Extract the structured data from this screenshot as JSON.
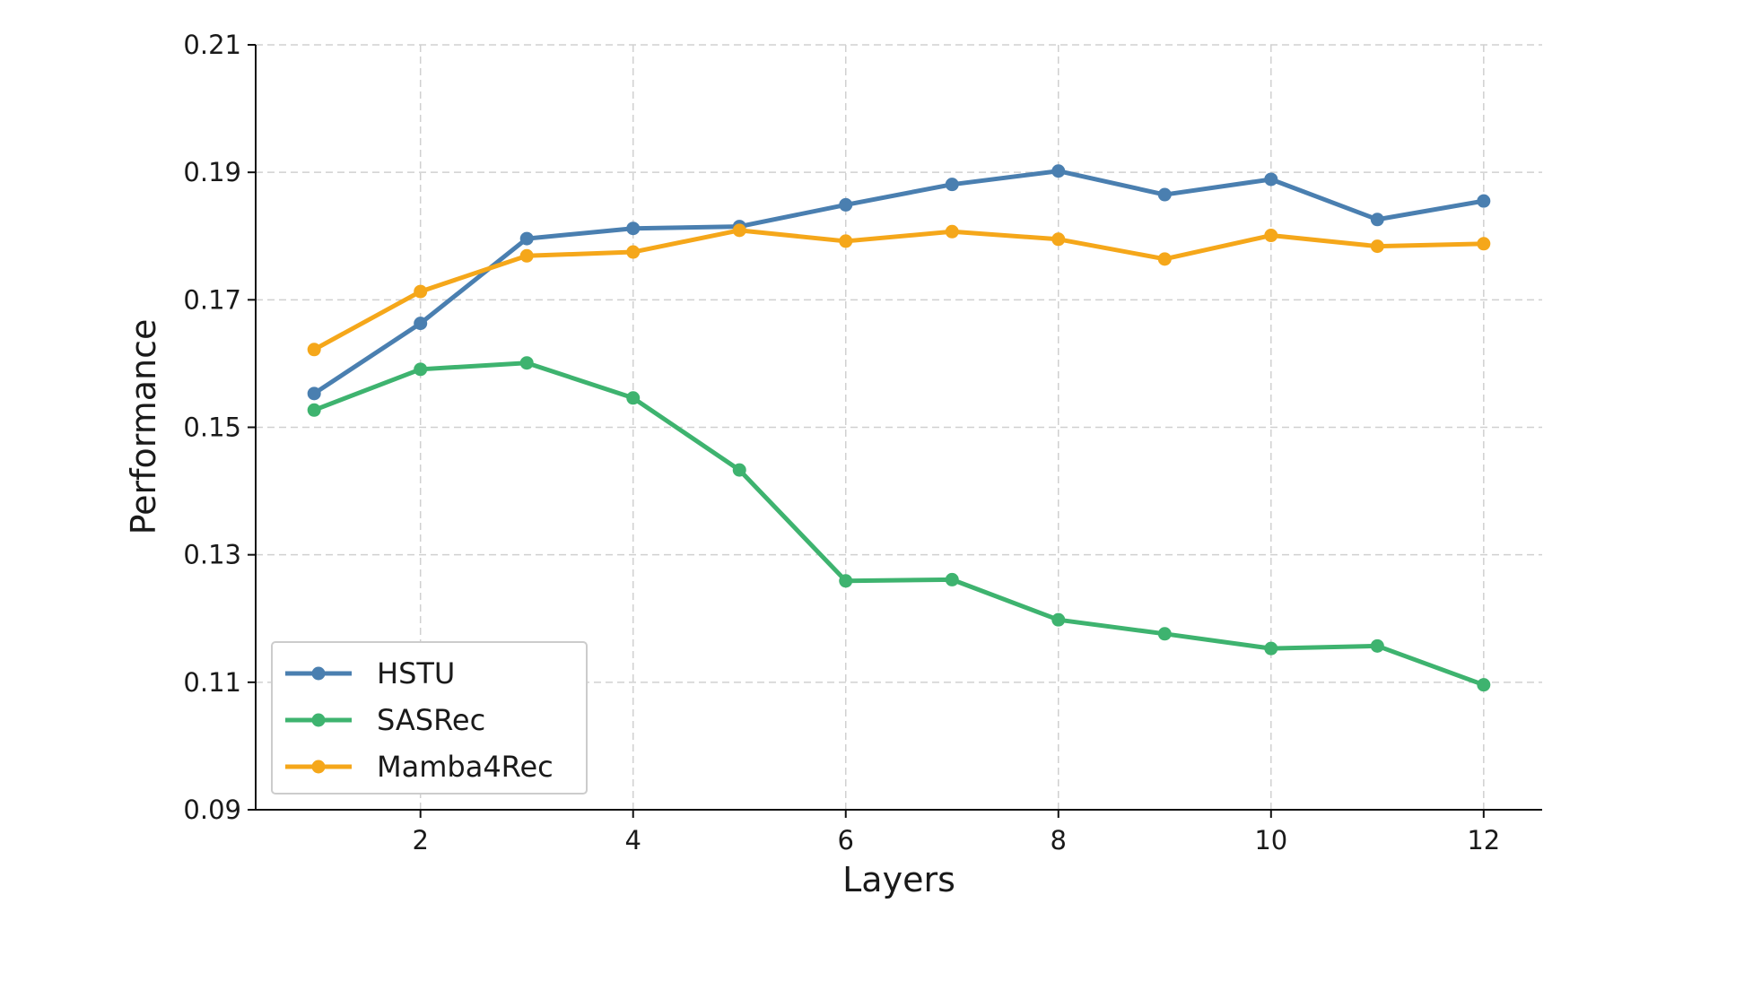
{
  "chart_data": {
    "type": "line",
    "title": "",
    "xlabel": "Layers",
    "ylabel": "Performance",
    "xlim": [
      0.45,
      12.55
    ],
    "ylim": [
      0.09,
      0.21
    ],
    "xticks": [
      2,
      4,
      6,
      8,
      10,
      12
    ],
    "xtick_labels": [
      "2",
      "4",
      "6",
      "8",
      "10",
      "12"
    ],
    "yticks": [
      0.09,
      0.11,
      0.13,
      0.15,
      0.17,
      0.19,
      0.21
    ],
    "ytick_labels": [
      "0.09",
      "0.11",
      "0.13",
      "0.15",
      "0.17",
      "0.19",
      "0.21"
    ],
    "grid": true,
    "legend_position": "lower-left",
    "x": [
      1,
      2,
      3,
      4,
      5,
      6,
      7,
      8,
      9,
      10,
      11,
      12
    ],
    "series": [
      {
        "name": "HSTU",
        "color": "#4a7fb0",
        "values": [
          0.1553,
          0.1663,
          0.1796,
          0.1812,
          0.1815,
          0.1849,
          0.1881,
          0.1902,
          0.1865,
          0.1889,
          0.1826,
          0.1855
        ]
      },
      {
        "name": "SASRec",
        "color": "#3eb36f",
        "values": [
          0.1527,
          0.1591,
          0.1601,
          0.1546,
          0.1433,
          0.1259,
          0.1261,
          0.1198,
          0.1176,
          0.1153,
          0.1157,
          0.1096
        ]
      },
      {
        "name": "Mamba4Rec",
        "color": "#f5a71a",
        "values": [
          0.1622,
          0.1713,
          0.1769,
          0.1775,
          0.1809,
          0.1792,
          0.1807,
          0.1795,
          0.1764,
          0.1801,
          0.1784,
          0.1788
        ]
      }
    ]
  }
}
